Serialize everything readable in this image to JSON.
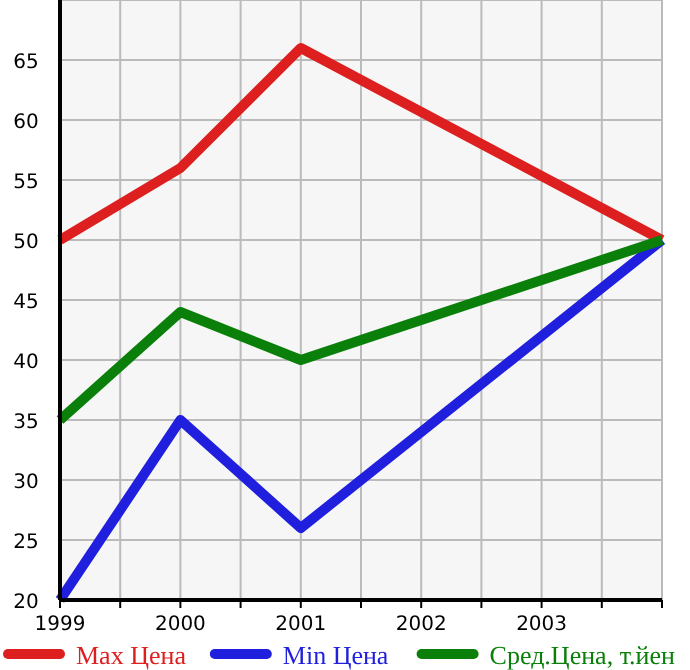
{
  "chart_data": {
    "type": "line",
    "xlim": [
      1999,
      2004
    ],
    "xticks": [
      1999,
      {
        "value": 1999.5,
        "label": null
      },
      2000,
      {
        "value": 2000.5,
        "label": null
      },
      2001,
      {
        "value": 2001.5,
        "label": null
      },
      2002,
      {
        "value": 2002.5,
        "label": null
      },
      2003,
      {
        "value": 2003.5,
        "label": null
      },
      {
        "value": 2004,
        "label": null
      }
    ],
    "ylim": [
      20,
      70
    ],
    "yticks": [
      20,
      25,
      30,
      35,
      40,
      45,
      50,
      55,
      60,
      65,
      {
        "value": 70,
        "label": null
      }
    ],
    "grid": true,
    "legend": "bottom",
    "marker": "none",
    "line_style": "solid",
    "series": [
      {
        "name": "Max Цена",
        "color": "#dd1f1f",
        "x": [
          1999,
          2000,
          2001,
          2004
        ],
        "values": [
          50,
          56,
          66,
          50
        ]
      },
      {
        "name": "Min Цена",
        "color": "#1f1fdd",
        "x": [
          1999,
          2000,
          2001,
          2004
        ],
        "values": [
          20,
          35,
          26,
          50
        ]
      },
      {
        "name": "Сред.Цена, т.йен",
        "color": "#0a800a",
        "x": [
          1999,
          2000,
          2001,
          2004
        ],
        "values": [
          35,
          44,
          40,
          50
        ]
      }
    ]
  }
}
